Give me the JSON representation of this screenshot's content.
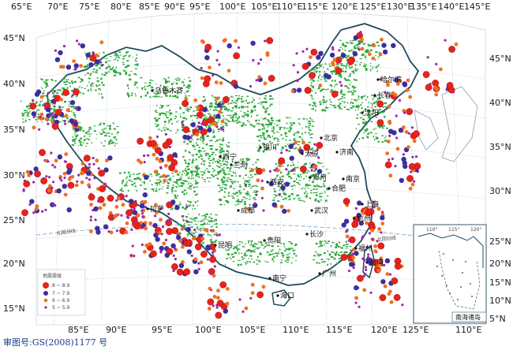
{
  "colors": {
    "mag_6_8": "#e8221c",
    "mag_7_7": "#3b2fa0",
    "mag_6_6": "#f07020",
    "mag_5_5": "#9a2aa8",
    "fault": "#2aa83a",
    "border": "#1f4a5a",
    "sea_border": "#9ab0c8"
  },
  "top_lon_labels": [
    "65°E",
    "70°E",
    "75°E",
    "80°E",
    "85°E",
    "90°E",
    "95°E",
    "100°E",
    "105°E",
    "110°E",
    "115°E",
    "120°E",
    "125°E",
    "130°E",
    "135°E",
    "140°E",
    "145°E"
  ],
  "bottom_lon_labels": [
    "85°E",
    "90°E",
    "95°E",
    "100°E",
    "105°E",
    "110°E",
    "115°E",
    "120°E",
    "125°E"
  ],
  "left_lat_labels": [
    "45°N",
    "40°N",
    "35°N",
    "30°N",
    "25°N",
    "20°N",
    "15°N"
  ],
  "right_lat_labels": [
    "45°N",
    "40°N",
    "35°N",
    "30°N",
    "25°N",
    "20°N",
    "15°N",
    "10°N",
    "5°N"
  ],
  "cities": [
    "乌鲁木齐",
    "哈尔滨",
    "长春",
    "沈阳",
    "银川",
    "兰州",
    "西宁",
    "西安",
    "郑州",
    "南京",
    "上海",
    "拉萨",
    "成都",
    "武汉",
    "福州",
    "台湾",
    "广州",
    "南宁",
    "海口",
    "北京",
    "太原",
    "济南",
    "合肥",
    "长沙",
    "贵阳",
    "昆明",
    "杭州"
  ],
  "line_labels": {
    "left": "北回归线",
    "right": "北回归线"
  },
  "legend": {
    "title": "地震震级",
    "items": [
      "8 ~ 8.9",
      "7 ~ 7.9",
      "6 ~ 6.9",
      "5 ~ 5.9"
    ]
  },
  "inset": {
    "lon_labels": [
      "110°",
      "115°",
      "120°"
    ],
    "bottom_lon": "110°E",
    "title": "南海诸岛"
  },
  "approval": "审图号:GS(2008)1177 号"
}
